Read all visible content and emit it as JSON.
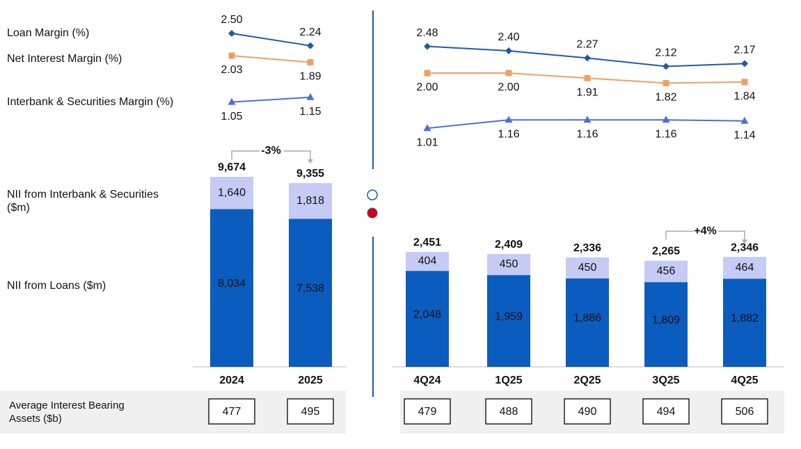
{
  "assets_label": "Average Interest Bearing Assets ($b)",
  "chart_data": [
    {
      "type": "combo",
      "categories": [
        "2024",
        "2025"
      ],
      "series": [
        {
          "name": "Loan Margin (%)",
          "kind": "line",
          "marker": "diamond",
          "color": "#1e5aa8",
          "values": [
            2.5,
            2.24
          ],
          "value_labels": [
            "2.50",
            "2.24"
          ]
        },
        {
          "name": "Net Interest Margin (%)",
          "kind": "line",
          "marker": "square",
          "color": "#f0a060",
          "values": [
            2.03,
            1.89
          ]
        },
        {
          "name": "Interbank & Securities Margin (%)",
          "kind": "line",
          "marker": "triangle",
          "color": "#4a6fd8",
          "values": [
            1.05,
            1.15
          ]
        },
        {
          "name": "NII from Interbank & Securities ($m)",
          "kind": "bar",
          "color": "#c5cbf5",
          "values": [
            1640,
            1818
          ],
          "value_labels": [
            "1,640",
            "1,818"
          ]
        },
        {
          "name": "NII from Loans ($m)",
          "kind": "bar",
          "color": "#0b5cbf",
          "values": [
            8034,
            7538
          ],
          "value_labels": [
            "8,034",
            "7,538"
          ]
        }
      ],
      "totals": {
        "values": [
          9674,
          9355
        ],
        "value_labels": [
          "9,674",
          "9,355"
        ]
      },
      "change_label": "-3%",
      "assets": [
        477,
        495
      ]
    },
    {
      "type": "combo",
      "categories": [
        "4Q24",
        "1Q25",
        "2Q25",
        "3Q25",
        "4Q25"
      ],
      "series": [
        {
          "kind": "line",
          "marker": "diamond",
          "color": "#1e5aa8",
          "values": [
            2.48,
            2.4,
            2.27,
            2.12,
            2.17
          ],
          "value_labels": [
            "2.48",
            "2.40",
            "2.27",
            "2.12",
            "2.17"
          ]
        },
        {
          "kind": "line",
          "marker": "square",
          "color": "#f0a060",
          "values": [
            2.0,
            2.0,
            1.91,
            1.82,
            1.84
          ],
          "value_labels": [
            "2.00",
            "2.00",
            "1.91",
            "1.82",
            "1.84"
          ]
        },
        {
          "kind": "line",
          "marker": "triangle",
          "color": "#4a6fd8",
          "values": [
            1.01,
            1.16,
            1.16,
            1.16,
            1.14
          ]
        },
        {
          "kind": "bar",
          "color": "#c5cbf5",
          "values": [
            404,
            450,
            450,
            456,
            464
          ]
        },
        {
          "kind": "bar",
          "color": "#0b5cbf",
          "values": [
            2048,
            1959,
            1886,
            1809,
            1882
          ],
          "value_labels": [
            "2,048",
            "1,959",
            "1,886",
            "1,809",
            "1,882"
          ]
        }
      ],
      "totals": {
        "values": [
          2451,
          2409,
          2336,
          2265,
          2346
        ],
        "value_labels": [
          "2,451",
          "2,409",
          "2,336",
          "2,265",
          "2,346"
        ]
      },
      "change_label": "+4%",
      "assets": [
        479,
        488,
        490,
        494,
        506
      ]
    }
  ]
}
